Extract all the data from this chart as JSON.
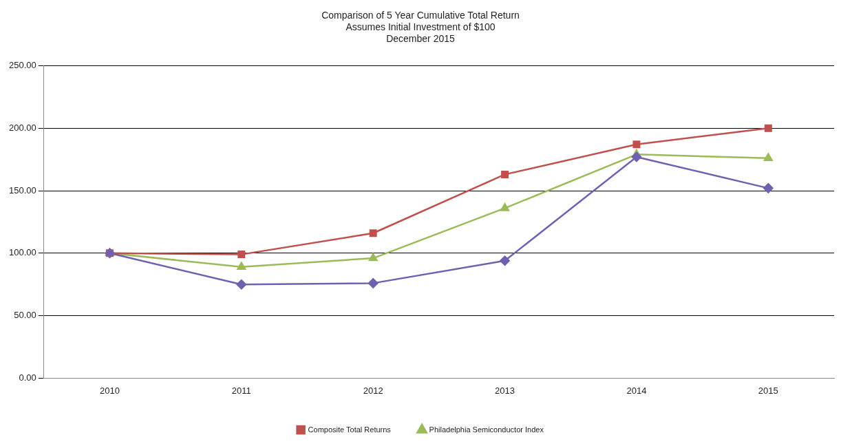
{
  "chart_data": {
    "type": "line",
    "title": "Comparison of 5 Year Cumulative Total Return",
    "subtitle": "Assumes Initial Investment of $100\nDecember 2015",
    "categories": [
      "2010",
      "2011",
      "2012",
      "2013",
      "2014",
      "2015"
    ],
    "series": [
      {
        "color": "#7060b0",
        "marker": "diamond",
        "values": [
          100,
          75,
          76,
          94,
          177,
          152
        ]
      },
      {
        "name": "Composite Total Returns",
        "color": "#c0504d",
        "marker": "square",
        "values": [
          100,
          99,
          116,
          163,
          187,
          200
        ]
      },
      {
        "name": "Philadelphia Semiconductor Index",
        "color": "#9bbb59",
        "marker": "triangle",
        "values": [
          100,
          89,
          96,
          136,
          179,
          176
        ]
      }
    ],
    "ylim": [
      0,
      250
    ],
    "yticks": [
      {
        "value": 0,
        "label": "0.00"
      },
      {
        "value": 50,
        "label": "50.00"
      },
      {
        "value": 100,
        "label": "100.00"
      },
      {
        "value": 150,
        "label": "150.00"
      },
      {
        "value": 200,
        "label": "200.00"
      },
      {
        "value": 250,
        "label": "250.00"
      }
    ],
    "grid": "y",
    "legend": "bottom"
  }
}
